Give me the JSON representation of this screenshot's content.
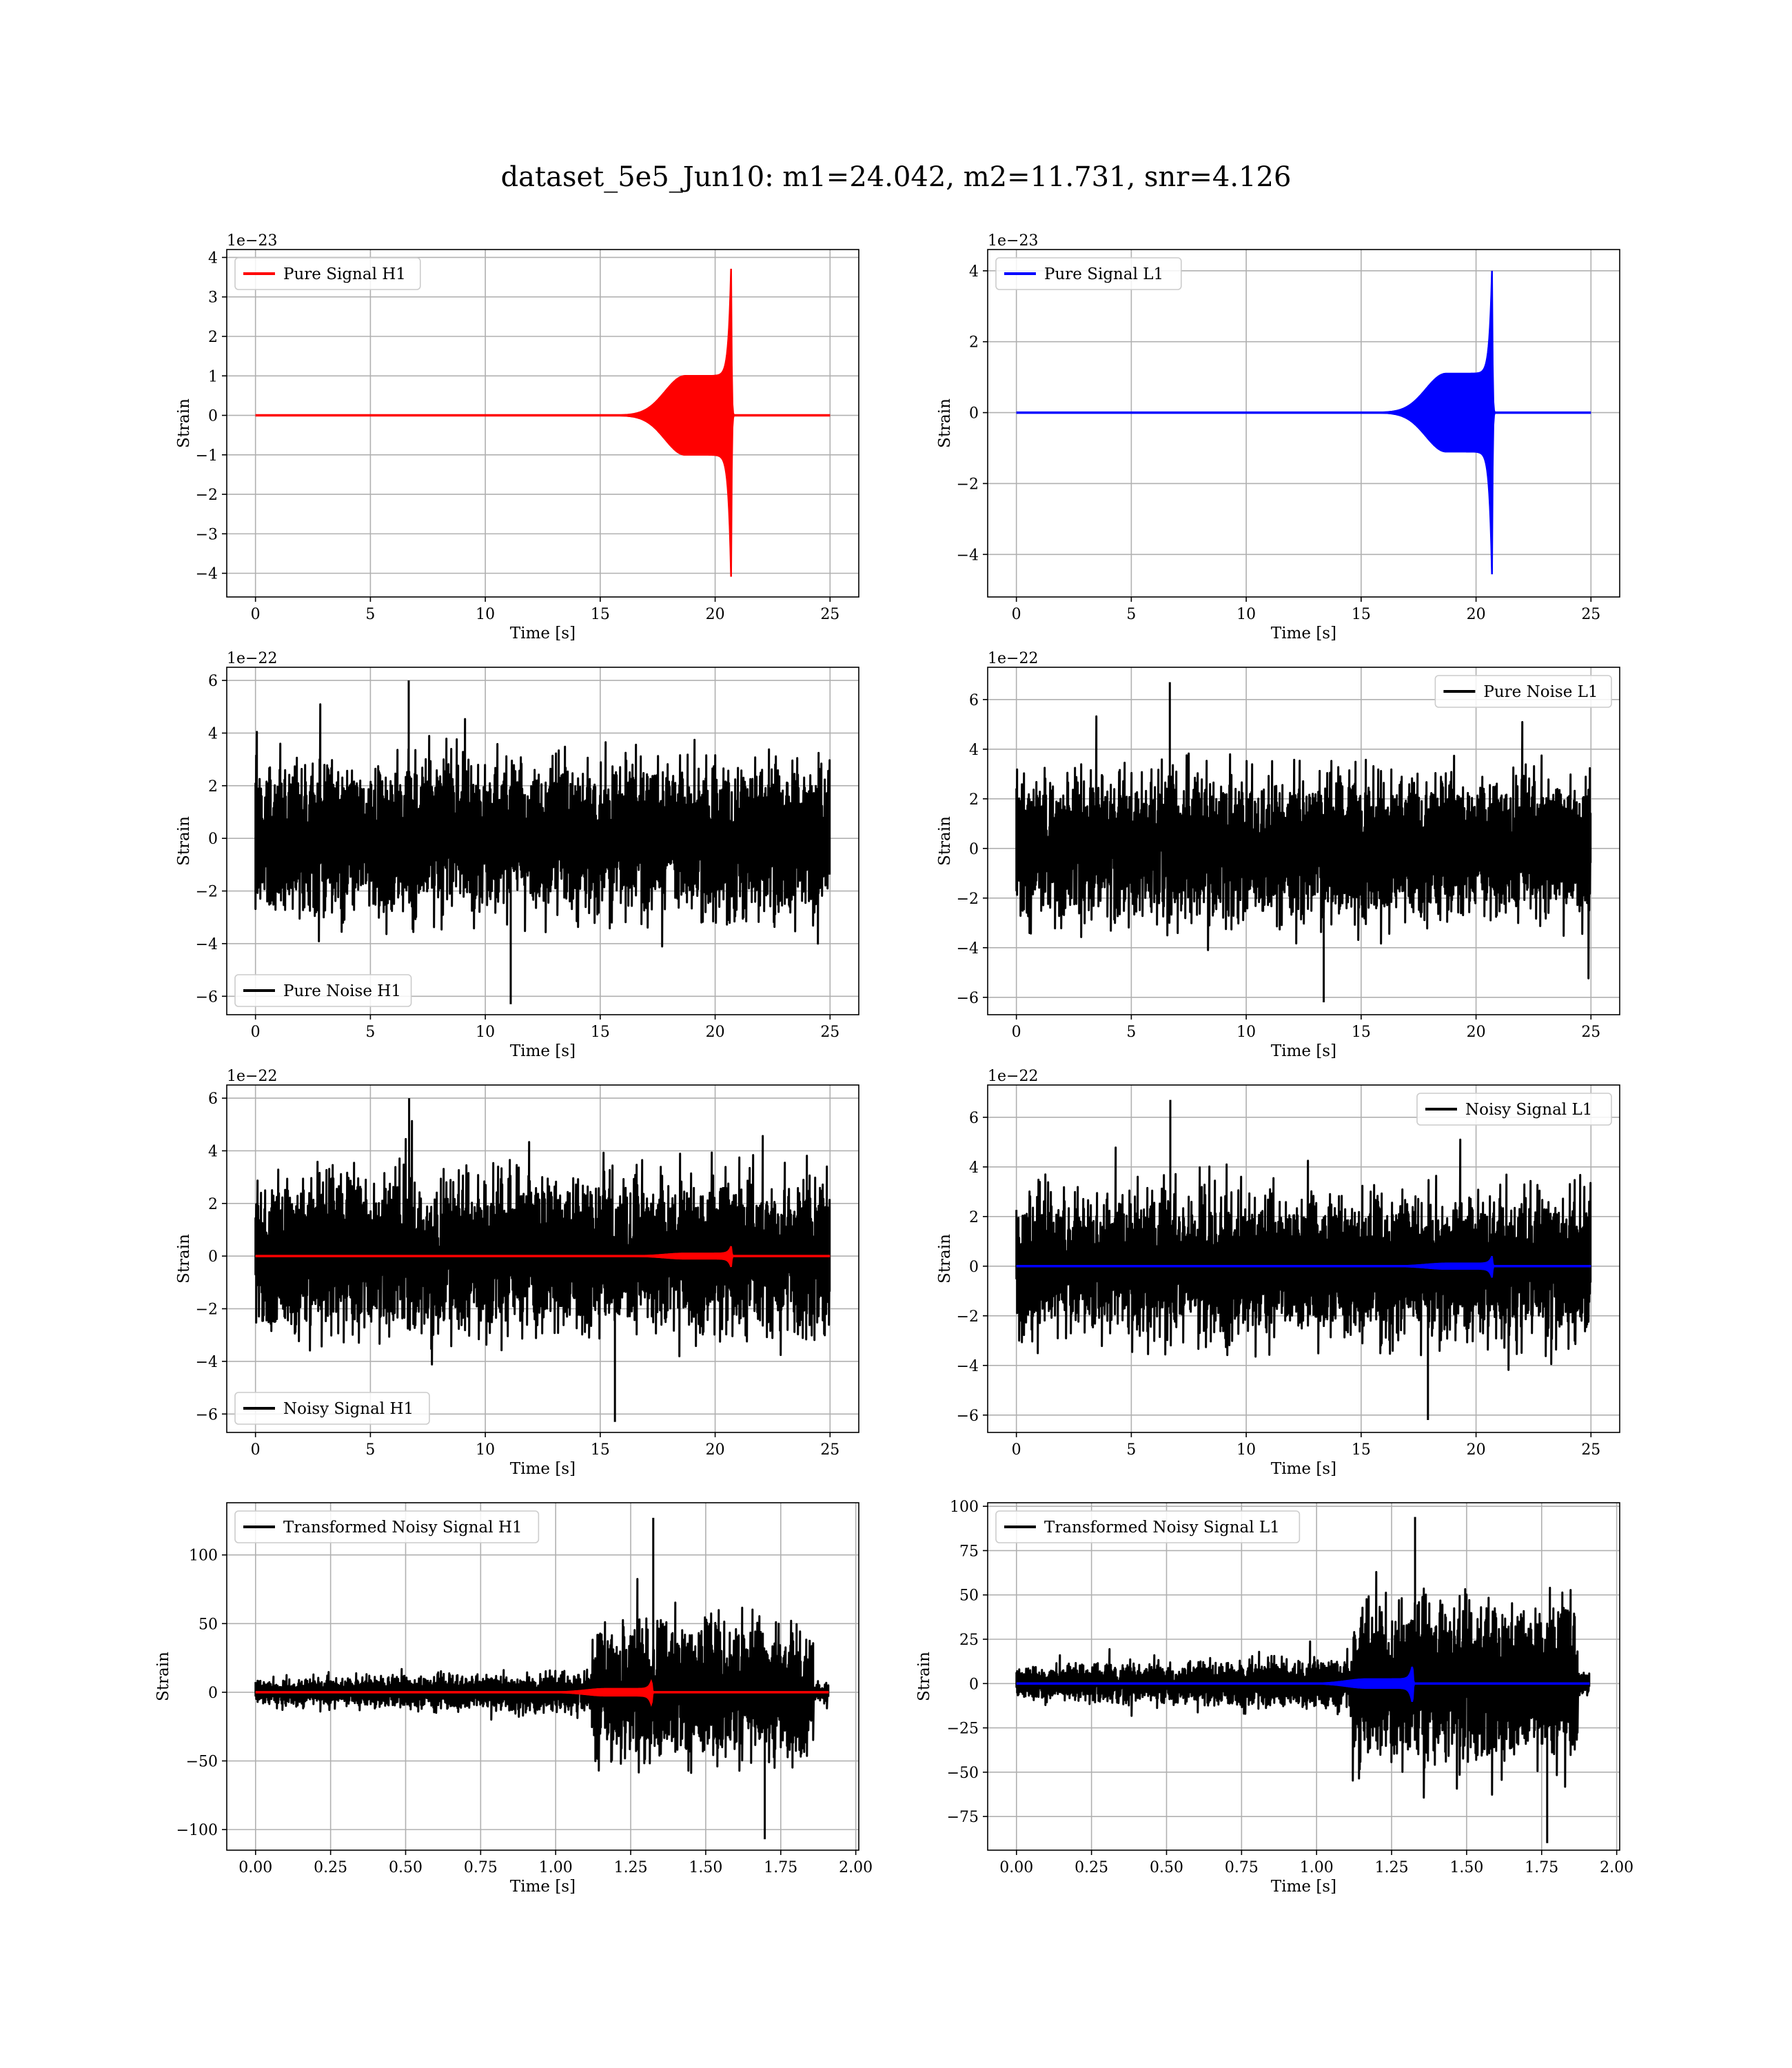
{
  "figure": {
    "suptitle": "dataset_5e5_Jun10: m1=24.042, m2=11.731, snr=4.126"
  },
  "colors": {
    "h1_signal": "#ff0000",
    "l1_signal": "#0000ff",
    "noise": "#000000",
    "grid": "#b0b0b0"
  },
  "chart_data": [
    {
      "type": "line",
      "panel": "row1-left",
      "xlabel": "Time [s]",
      "ylabel": "Strain",
      "offset_text": "1e−23",
      "xlim": [
        -1.25,
        26.25
      ],
      "ylim": [
        -4.6,
        4.2
      ],
      "xticks": [
        0,
        5,
        10,
        15,
        20,
        25
      ],
      "yticks": [
        -4,
        -3,
        -2,
        -1,
        0,
        1,
        2,
        3,
        4
      ],
      "grid": true,
      "legend_position": "upper-left",
      "series": [
        {
          "name": "Pure Signal H1",
          "color": "#ff0000",
          "kind": "chirp",
          "x_start": 0,
          "x_end": 25,
          "merger_x": 20.7,
          "plateau": 1.0,
          "peak_pos": 3.9,
          "peak_neg": -4.3
        }
      ]
    },
    {
      "type": "line",
      "panel": "row1-right",
      "xlabel": "Time [s]",
      "ylabel": "Strain",
      "offset_text": "1e−23",
      "xlim": [
        -1.25,
        26.25
      ],
      "ylim": [
        -5.2,
        4.6
      ],
      "xticks": [
        0,
        5,
        10,
        15,
        20,
        25
      ],
      "yticks": [
        -4,
        -2,
        0,
        2,
        4
      ],
      "grid": true,
      "legend_position": "upper-left",
      "series": [
        {
          "name": "Pure Signal L1",
          "color": "#0000ff",
          "kind": "chirp",
          "x_start": 0,
          "x_end": 25,
          "merger_x": 20.7,
          "plateau": 1.1,
          "peak_pos": 4.2,
          "peak_neg": -4.8
        }
      ]
    },
    {
      "type": "line",
      "panel": "row2-left",
      "xlabel": "Time [s]",
      "ylabel": "Strain",
      "offset_text": "1e−22",
      "xlim": [
        -1.25,
        26.25
      ],
      "ylim": [
        -6.7,
        6.5
      ],
      "xticks": [
        0,
        5,
        10,
        15,
        20,
        25
      ],
      "yticks": [
        -6,
        -4,
        -2,
        0,
        2,
        4,
        6
      ],
      "grid": true,
      "legend_position": "lower-left",
      "series": [
        {
          "name": "Pure Noise H1",
          "color": "#000000",
          "kind": "noise",
          "x_start": 0,
          "x_end": 25,
          "amplitude": 1.3,
          "max": 6.0,
          "min": -6.3
        }
      ]
    },
    {
      "type": "line",
      "panel": "row2-right",
      "xlabel": "Time [s]",
      "ylabel": "Strain",
      "offset_text": "1e−22",
      "xlim": [
        -1.25,
        26.25
      ],
      "ylim": [
        -6.7,
        7.3
      ],
      "xticks": [
        0,
        5,
        10,
        15,
        20,
        25
      ],
      "yticks": [
        -6,
        -4,
        -2,
        0,
        2,
        4,
        6
      ],
      "grid": true,
      "legend_position": "upper-right",
      "series": [
        {
          "name": "Pure Noise L1",
          "color": "#000000",
          "kind": "noise",
          "x_start": 0,
          "x_end": 25,
          "amplitude": 1.3,
          "max": 6.7,
          "min": -6.2
        }
      ]
    },
    {
      "type": "line",
      "panel": "row3-left",
      "xlabel": "Time [s]",
      "ylabel": "Strain",
      "offset_text": "1e−22",
      "xlim": [
        -1.25,
        26.25
      ],
      "ylim": [
        -6.7,
        6.5
      ],
      "xticks": [
        0,
        5,
        10,
        15,
        20,
        25
      ],
      "yticks": [
        -6,
        -4,
        -2,
        0,
        2,
        4,
        6
      ],
      "grid": true,
      "legend_position": "lower-left",
      "series": [
        {
          "name": "Noisy Signal H1",
          "color": "#000000",
          "kind": "noise",
          "x_start": 0,
          "x_end": 25,
          "amplitude": 1.3,
          "max": 6.0,
          "min": -6.3
        },
        {
          "color": "#ff0000",
          "kind": "chirp",
          "x_start": 0,
          "x_end": 25,
          "merger_x": 20.7,
          "plateau": 0.1,
          "peak_pos": 0.39,
          "peak_neg": -0.43
        }
      ]
    },
    {
      "type": "line",
      "panel": "row3-right",
      "xlabel": "Time [s]",
      "ylabel": "Strain",
      "offset_text": "1e−22",
      "xlim": [
        -1.25,
        26.25
      ],
      "ylim": [
        -6.7,
        7.3
      ],
      "xticks": [
        0,
        5,
        10,
        15,
        20,
        25
      ],
      "yticks": [
        -6,
        -4,
        -2,
        0,
        2,
        4,
        6
      ],
      "grid": true,
      "legend_position": "upper-right",
      "series": [
        {
          "name": "Noisy Signal L1",
          "color": "#000000",
          "kind": "noise",
          "x_start": 0,
          "x_end": 25,
          "amplitude": 1.3,
          "max": 6.7,
          "min": -6.2
        },
        {
          "color": "#0000ff",
          "kind": "chirp",
          "x_start": 0,
          "x_end": 25,
          "merger_x": 20.7,
          "plateau": 0.11,
          "peak_pos": 0.42,
          "peak_neg": -0.48
        }
      ]
    },
    {
      "type": "line",
      "panel": "row4-left",
      "xlabel": "Time [s]",
      "ylabel": "Strain",
      "offset_text": "",
      "xlim": [
        -0.096,
        2.01
      ],
      "ylim": [
        -115,
        138
      ],
      "xticks": [
        0.0,
        0.25,
        0.5,
        0.75,
        1.0,
        1.25,
        1.5,
        1.75,
        2.0
      ],
      "xtick_labels": [
        "0.00",
        "0.25",
        "0.50",
        "0.75",
        "1.00",
        "1.25",
        "1.50",
        "1.75",
        "2.00"
      ],
      "yticks": [
        -100,
        -50,
        0,
        50,
        100
      ],
      "grid": true,
      "legend_position": "upper-left",
      "series": [
        {
          "name": "Transformed Noisy Signal H1",
          "color": "#000000",
          "kind": "tnoise",
          "x_start": 0,
          "x_end": 1.91,
          "t_jump": 1.12,
          "t_end": 1.86,
          "amp_low": 4,
          "amp_high": 22,
          "max": 127,
          "min": -107
        },
        {
          "color": "#ff0000",
          "kind": "chirp",
          "x_start": 0,
          "x_end": 1.91,
          "merger_x": 1.32,
          "plateau": 2.5,
          "peak_pos": 9,
          "peak_neg": -10
        }
      ]
    },
    {
      "type": "line",
      "panel": "row4-right",
      "xlabel": "Time [s]",
      "ylabel": "Strain",
      "offset_text": "",
      "xlim": [
        -0.096,
        2.01
      ],
      "ylim": [
        -94,
        102
      ],
      "xticks": [
        0.0,
        0.25,
        0.5,
        0.75,
        1.0,
        1.25,
        1.5,
        1.75,
        2.0
      ],
      "xtick_labels": [
        "0.00",
        "0.25",
        "0.50",
        "0.75",
        "1.00",
        "1.25",
        "1.50",
        "1.75",
        "2.00"
      ],
      "yticks": [
        -75,
        -50,
        -25,
        0,
        25,
        50,
        75,
        100
      ],
      "grid": true,
      "legend_position": "upper-left",
      "series": [
        {
          "name": "Transformed Noisy Signal L1",
          "color": "#000000",
          "kind": "tnoise",
          "x_start": 0,
          "x_end": 1.91,
          "t_jump": 1.12,
          "t_end": 1.87,
          "amp_low": 4,
          "amp_high": 20,
          "max": 94,
          "min": -90
        },
        {
          "color": "#0000ff",
          "kind": "chirp",
          "x_start": 0,
          "x_end": 1.91,
          "merger_x": 1.32,
          "plateau": 2.5,
          "peak_pos": 11,
          "peak_neg": -12
        }
      ]
    }
  ]
}
